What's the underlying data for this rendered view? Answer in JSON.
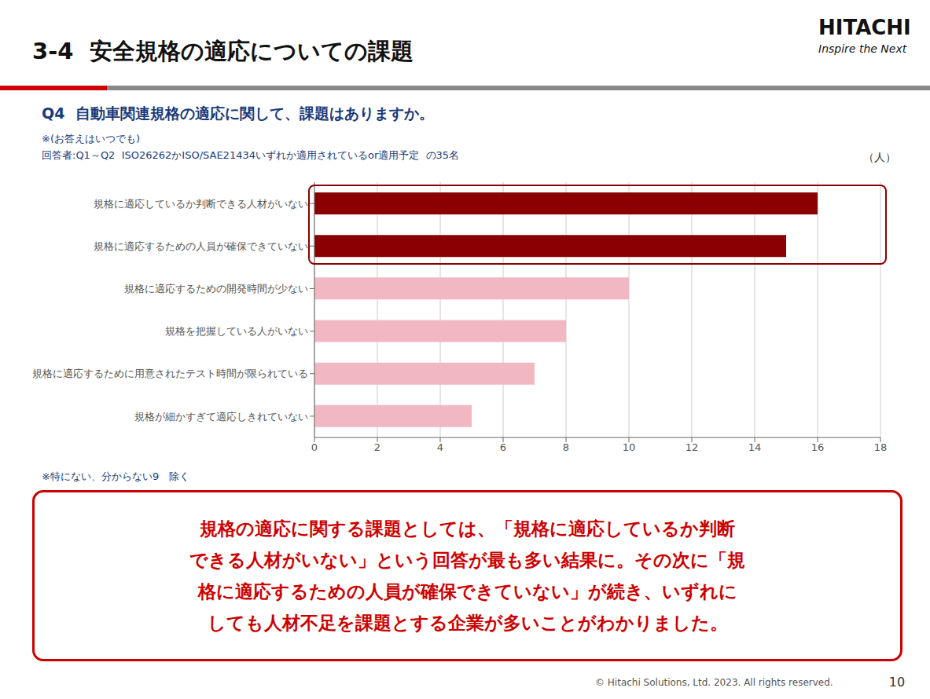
{
  "chart_data": {
    "type": "bar",
    "orientation": "horizontal",
    "title": "3-4  安全規格の適応についての課題",
    "header": [
      "HITACHI",
      "Inspire the Next"
    ],
    "subtitle": "Q4  自動車関連規格の適応に関して、課題はありますか。",
    "notes": [
      "※(お答えはいつでも)",
      "回答者:Q1～Q2  ISO26262かISO/SAE21434いずれか適用されているor適用予定  の35名"
    ],
    "xlabel": "（人）",
    "categories": [
      "規格に適応しているか判断できる人材がいない",
      "規格に適応するための人員が確保できていない",
      "規格に適応するための開発時間が少ない",
      "規格を把握している人がいない",
      "規格に適応するために用意されたテスト時間が限られている",
      "規格が細かすぎて適応しきれていない"
    ],
    "values": [
      16,
      15,
      10,
      8,
      7,
      5
    ],
    "colors": [
      "#8B0000",
      "#8B0000",
      "#F2B8C2",
      "#F2B8C2",
      "#F2B8C2",
      "#F2B8C2"
    ],
    "xlim": [
      0,
      18
    ],
    "xticks": [
      0,
      2,
      4,
      6,
      8,
      10,
      12,
      14,
      16,
      18
    ],
    "grid": true,
    "highlight": {
      "categories": [
        "規格に適応しているか判断できる人材がいない",
        "規格に適応するための人員が確保できていない"
      ],
      "color": "#8B0000"
    },
    "footnote": "※特にない、分からない9　除く",
    "summary": [
      "規格の適応に関する課題としては、「規格に適応しているか判断",
      "できる人材がいない」という回答が最も多い結果に。その次に「規",
      "格に適応するための人員が確保できていない」が続き、いずれに",
      "しても人材不足を課題とする企業が多いことがわかりました。"
    ],
    "footer": [
      "© Hitachi Solutions, Ltd. 2023. All rights reserved.",
      "10"
    ]
  }
}
